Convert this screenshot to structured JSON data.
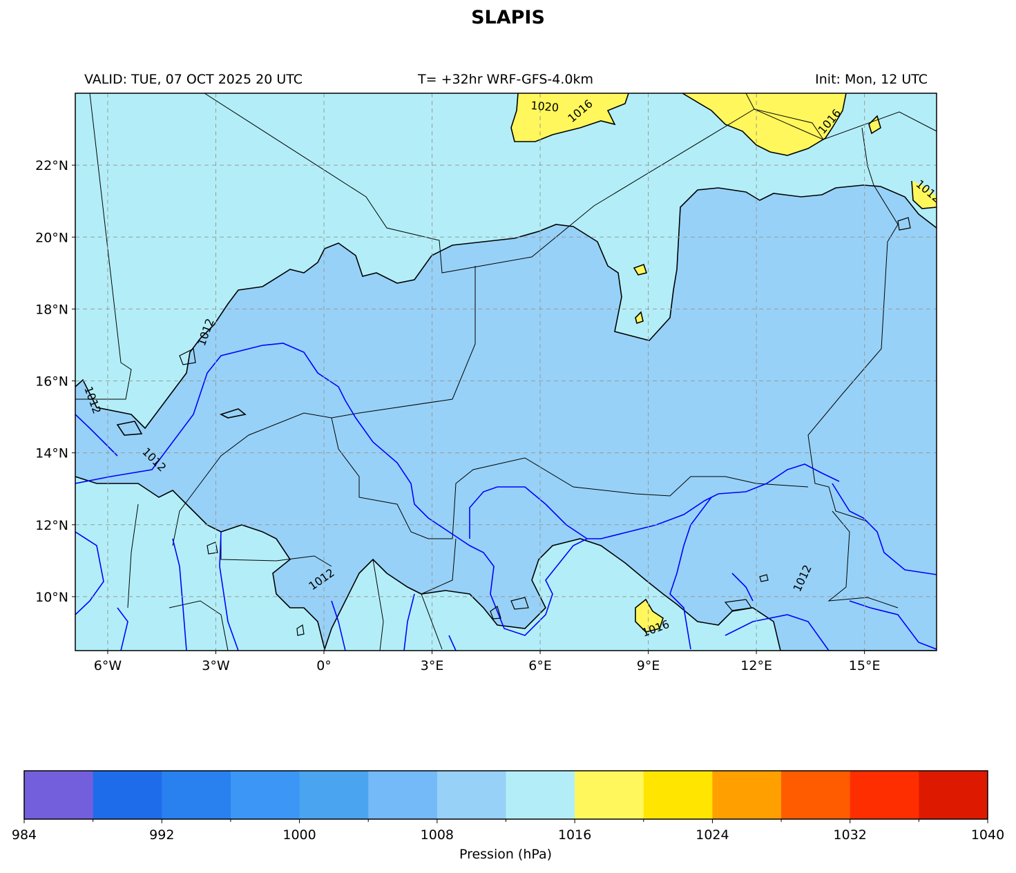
{
  "title": "SLAPIS",
  "header": {
    "valid": "VALID: TUE, 07 OCT 2025 20 UTC",
    "run": "T= +32hr WRF-GFS-4.0km",
    "init": "Init: Mon, 12 UTC"
  },
  "map": {
    "lon_range": [
      -6.9,
      17.0
    ],
    "lat_range": [
      8.5,
      24.0
    ],
    "lon_ticks": [
      {
        "value": -6,
        "label": "6°W"
      },
      {
        "value": -3,
        "label": "3°W"
      },
      {
        "value": 0,
        "label": "0°"
      },
      {
        "value": 3,
        "label": "3°E"
      },
      {
        "value": 6,
        "label": "6°E"
      },
      {
        "value": 9,
        "label": "9°E"
      },
      {
        "value": 12,
        "label": "12°E"
      },
      {
        "value": 15,
        "label": "15°E"
      }
    ],
    "lat_ticks": [
      {
        "value": 10,
        "label": "10°N"
      },
      {
        "value": 12,
        "label": "12°N"
      },
      {
        "value": 14,
        "label": "14°N"
      },
      {
        "value": 16,
        "label": "16°N"
      },
      {
        "value": 18,
        "label": "18°N"
      },
      {
        "value": 20,
        "label": "20°N"
      },
      {
        "value": 22,
        "label": "22°N"
      }
    ],
    "contour_labels": [
      "1020",
      "1016",
      "1012"
    ],
    "fill_colors": {
      "p1008_1012": "#97d1f7",
      "p1012_1016": "#b3eef8",
      "p1016_1020": "#fff75c"
    },
    "line_colors": {
      "contour_1012": "#000000",
      "contour_1008": "#0000ff",
      "borders": "#000000",
      "grid": "#999999"
    }
  },
  "colorbar": {
    "label": "Pression (hPa)",
    "colors": [
      "#735fdb",
      "#1f6ceb",
      "#2881ef",
      "#3b96f5",
      "#4ba4f0",
      "#74b9f8",
      "#97d1f7",
      "#b3eef8",
      "#fff75c",
      "#ffe500",
      "#ff9f00",
      "#ff5c00",
      "#ff2e00",
      "#dd1900"
    ],
    "ticks": [
      "984",
      "992",
      "1000",
      "1008",
      "1016",
      "1024",
      "1032",
      "1040"
    ]
  }
}
